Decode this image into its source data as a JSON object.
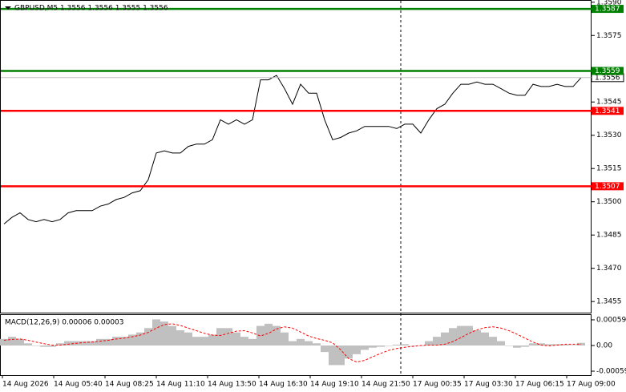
{
  "chart_data": [
    {
      "type": "line",
      "title": "GBPUSD,M5  1.3556 1.3556 1.3555 1.3556",
      "series": [
        {
          "color": "#000000",
          "values": [
            1.349,
            1.3493,
            1.3495,
            1.3492,
            1.3491,
            1.3492,
            1.3491,
            1.3492,
            1.3495,
            1.3496,
            1.3496,
            1.3496,
            1.3498,
            1.3499,
            1.3501,
            1.3502,
            1.3504,
            1.3505,
            1.351,
            1.3522,
            1.3523,
            1.3522,
            1.3522,
            1.3525,
            1.3526,
            1.3526,
            1.3528,
            1.3537,
            1.3535,
            1.3537,
            1.3535,
            1.3537,
            1.3555,
            1.3555,
            1.3557,
            1.3551,
            1.3544,
            1.3553,
            1.3549,
            1.3549,
            1.3537,
            1.3528,
            1.3529,
            1.3531,
            1.3532,
            1.3534,
            1.3534,
            1.3534,
            1.3534,
            1.3533,
            1.3535,
            1.3535,
            1.3531,
            1.3537,
            1.3542,
            1.3544,
            1.3549,
            1.3553,
            1.3553,
            1.3554,
            1.3553,
            1.3553,
            1.3551,
            1.3549,
            1.3548,
            1.3548,
            1.3553,
            1.3552,
            1.3552,
            1.3553,
            1.3552,
            1.3552,
            1.3556
          ]
        }
      ],
      "ylim": [
        1.345,
        1.3591
      ],
      "yticks": [
        {
          "value": 1.359,
          "label": "1.3590"
        },
        1.3575,
        1.3545,
        {
          "value": 1.353,
          "label": "1.3530"
        },
        1.3515,
        {
          "value": 1.35,
          "label": "1.3500"
        },
        1.3485,
        {
          "value": 1.347,
          "label": "1.3470"
        },
        1.3455
      ],
      "levels": [
        {
          "value": 1.3587,
          "color": "#008000"
        },
        {
          "value": 1.3559,
          "color": "#008000"
        },
        {
          "value": 1.3541,
          "color": "#ff0000"
        },
        {
          "value": 1.3507,
          "color": "#ff0000"
        }
      ],
      "x_labels": [
        "14 Aug 2026",
        "14 Aug 05:40",
        "14 Aug 08:25",
        "14 Aug 11:10",
        "14 Aug 13:50",
        "14 Aug 16:30",
        "14 Aug 19:10",
        "14 Aug 21:50",
        "17 Aug 00:35",
        "17 Aug 03:30",
        "17 Aug 06:15",
        "17 Aug 09:00"
      ]
    },
    {
      "type": "macd",
      "title": "MACD(12,26,9) 0.00006 0.00003",
      "histogram": {
        "color": "#c0c0c0",
        "values": [
          0.00015,
          0.0002,
          0.00015,
          5e-05,
          0,
          -3e-05,
          -3e-05,
          5e-05,
          0.0001,
          0.0001,
          0.0001,
          0.0001,
          0.00015,
          0.00015,
          0.0002,
          0.0002,
          0.00025,
          0.0003,
          0.0004,
          0.0006,
          0.00055,
          0.00045,
          0.00035,
          0.0003,
          0.0002,
          0.0002,
          0.00025,
          0.0004,
          0.0004,
          0.0003,
          0.0002,
          0.00015,
          0.00045,
          0.0005,
          0.00045,
          0.0003,
          0.0001,
          0.00015,
          0.0001,
          5e-05,
          -0.00015,
          -0.00045,
          -0.00045,
          -0.0003,
          -0.0002,
          -0.0001,
          -5e-05,
          -3e-05,
          0,
          2e-05,
          3e-05,
          0,
          0,
          0.0001,
          0.0002,
          0.0003,
          0.0004,
          0.00045,
          0.00045,
          0.00035,
          0.0003,
          0.0002,
          0.0001,
          0,
          -5e-05,
          -3e-05,
          5e-05,
          5e-05,
          3e-05,
          3e-05,
          2e-05,
          1e-05,
          6e-05
        ]
      },
      "signal": {
        "color": "#ff0000",
        "values": [
          0.00012,
          0.00014,
          0.00015,
          0.00012,
          8e-05,
          4e-05,
          1e-05,
          1e-05,
          3e-05,
          5e-05,
          7e-05,
          8e-05,
          0.0001,
          0.00012,
          0.00015,
          0.00017,
          0.0002,
          0.00024,
          0.0003,
          0.0004,
          0.00048,
          0.0005,
          0.00046,
          0.0004,
          0.00034,
          0.00028,
          0.00024,
          0.00023,
          0.00028,
          0.00033,
          0.00034,
          0.00029,
          0.00022,
          0.00028,
          0.00038,
          0.00043,
          0.0004,
          0.00031,
          0.00022,
          0.00016,
          0.00012,
          6e-05,
          -0.0001,
          -0.0003,
          -0.00038,
          -0.00034,
          -0.00026,
          -0.00018,
          -0.00011,
          -7e-05,
          -4e-05,
          -2e-05,
          0,
          1e-05,
          1e-05,
          3e-05,
          9e-05,
          0.00018,
          0.00028,
          0.00036,
          0.00041,
          0.00043,
          0.0004,
          0.00034,
          0.00026,
          0.00017,
          8e-05,
          1e-05,
          -1e-05,
          1e-05,
          3e-05,
          3e-05,
          3e-05
        ]
      },
      "ylim": [
        -0.0007,
        0.0007
      ],
      "yticks": [
        0.00059,
        {
          "value": 0,
          "label": "0.00"
        },
        -0.00059
      ]
    }
  ]
}
